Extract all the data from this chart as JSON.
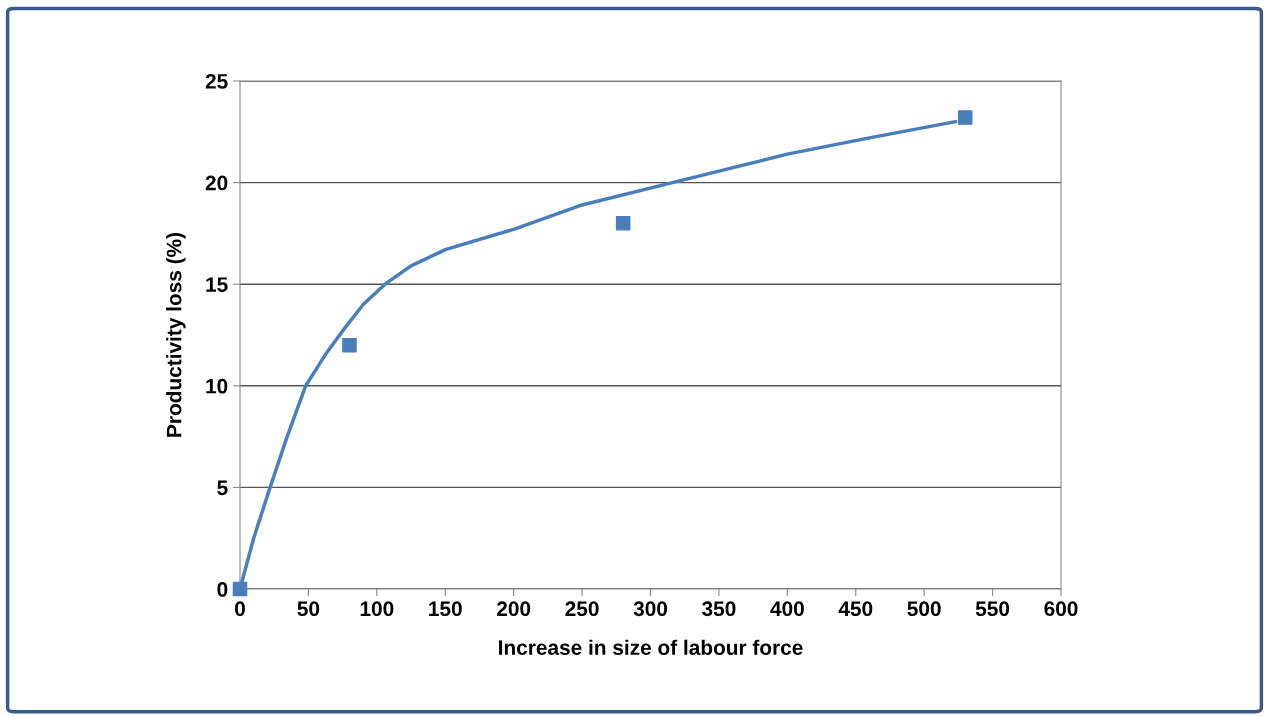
{
  "chart_data": {
    "type": "scatter",
    "xlabel": "Increase in size of labour force",
    "ylabel": "Productivity loss (%)",
    "xlim": [
      0,
      600
    ],
    "xticks": [
      0,
      50,
      100,
      150,
      200,
      250,
      300,
      350,
      400,
      450,
      500,
      550,
      600
    ],
    "ylim": [
      0,
      25
    ],
    "yticks": [
      0,
      5,
      10,
      15,
      20,
      25
    ],
    "grid": "y",
    "series": [
      {
        "color": "#4a7ebb",
        "marker": "square",
        "x": [
          0,
          80,
          280,
          530
        ],
        "values": [
          0,
          12,
          18,
          23.2
        ]
      },
      {
        "type": "line",
        "color": "#4a7ebb",
        "marker": "none",
        "line_style": "solid",
        "x": [
          0,
          10,
          22,
          35,
          48,
          62,
          75,
          90,
          106,
          125,
          150,
          200,
          250,
          316,
          400,
          460,
          523
        ],
        "values": [
          0,
          2.5,
          5,
          7.6,
          10,
          11.5,
          12.7,
          14,
          15,
          15.9,
          16.7,
          17.7,
          18.9,
          20,
          21.4,
          22.2,
          23.0
        ]
      }
    ]
  }
}
